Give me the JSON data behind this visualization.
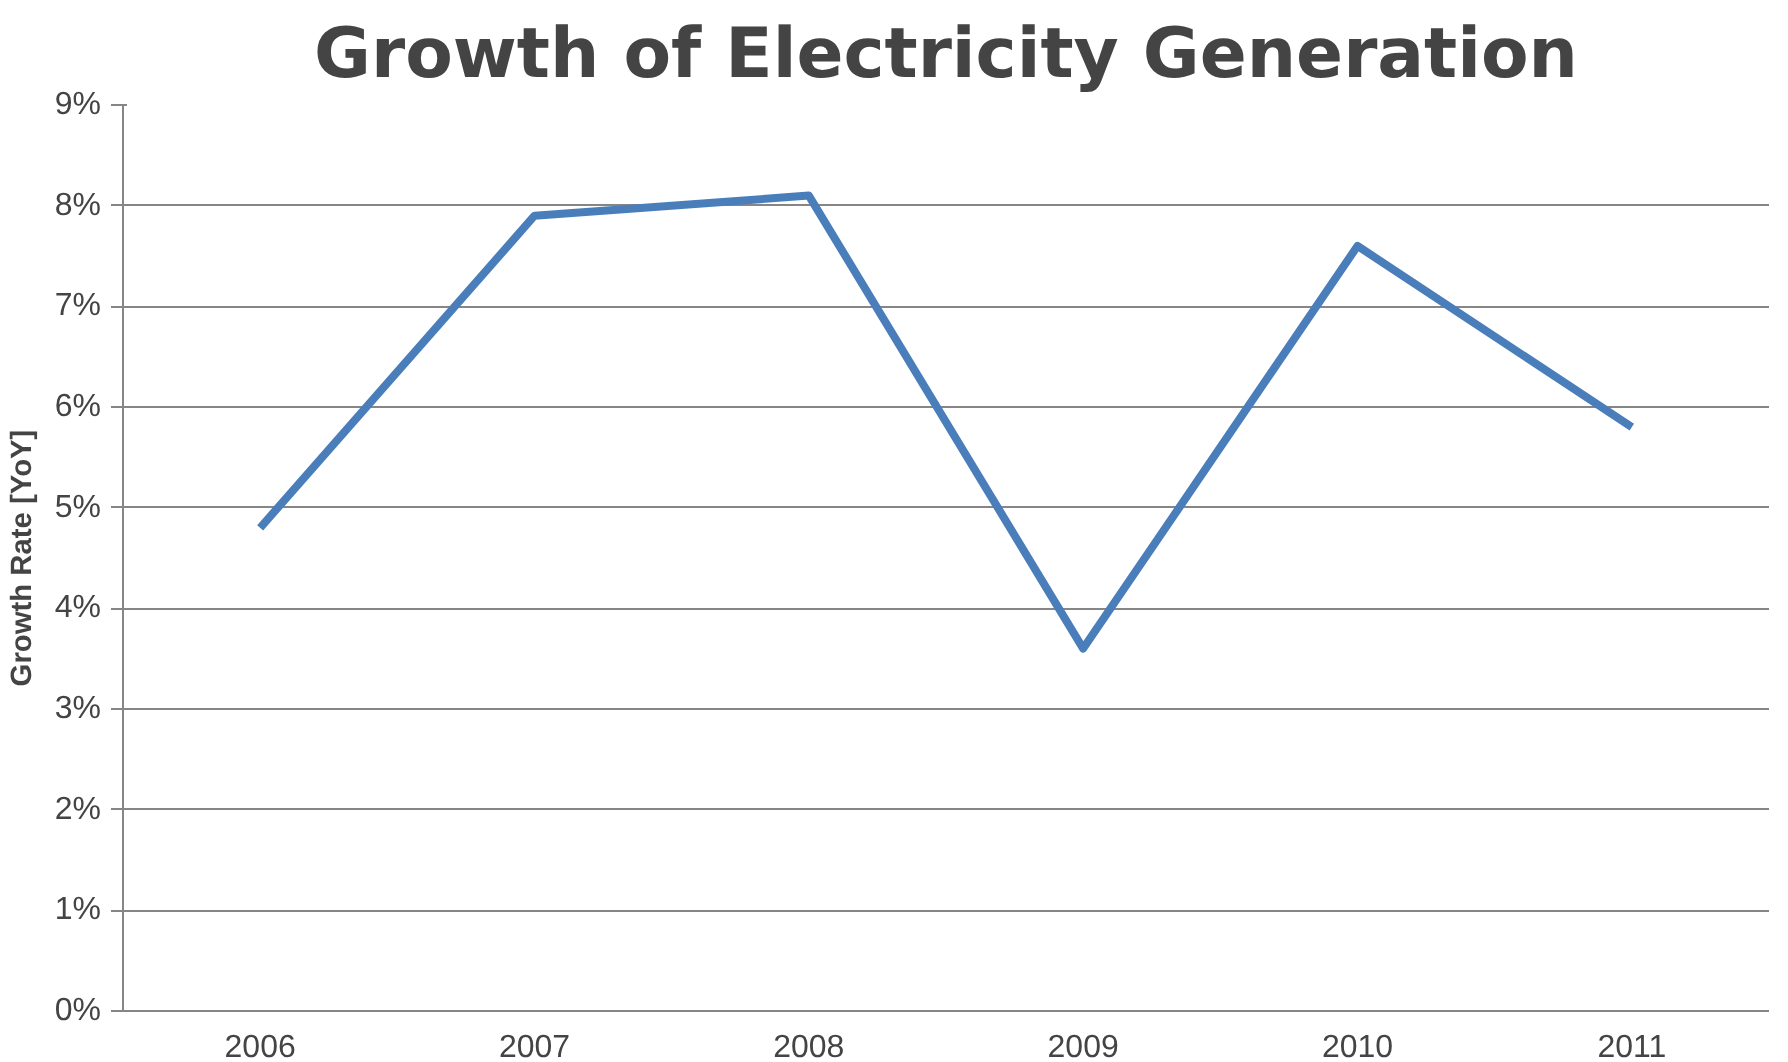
{
  "chart_data": {
    "type": "line",
    "title": "Growth of Electricity Generation",
    "ylabel": "Growth Rate [YoY]",
    "categories": [
      "2006",
      "2007",
      "2008",
      "2009",
      "2010",
      "2011"
    ],
    "series": [
      {
        "color": "#4a7ebb",
        "values": [
          4.8,
          7.9,
          8.1,
          3.6,
          7.6,
          5.8
        ]
      }
    ],
    "ylim": [
      0,
      9
    ],
    "yticks": [
      {
        "value": 0,
        "label": "0%"
      },
      {
        "value": 1,
        "label": "1%"
      },
      {
        "value": 2,
        "label": "2%"
      },
      {
        "value": 3,
        "label": "3%"
      },
      {
        "value": 4,
        "label": "4%"
      },
      {
        "value": 5,
        "label": "5%"
      },
      {
        "value": 6,
        "label": "6%"
      },
      {
        "value": 7,
        "label": "7%"
      },
      {
        "value": 8,
        "label": "8%"
      },
      {
        "value": 9,
        "label": "9%"
      }
    ],
    "grid": "y",
    "marker": "none",
    "line_style": "solid"
  }
}
